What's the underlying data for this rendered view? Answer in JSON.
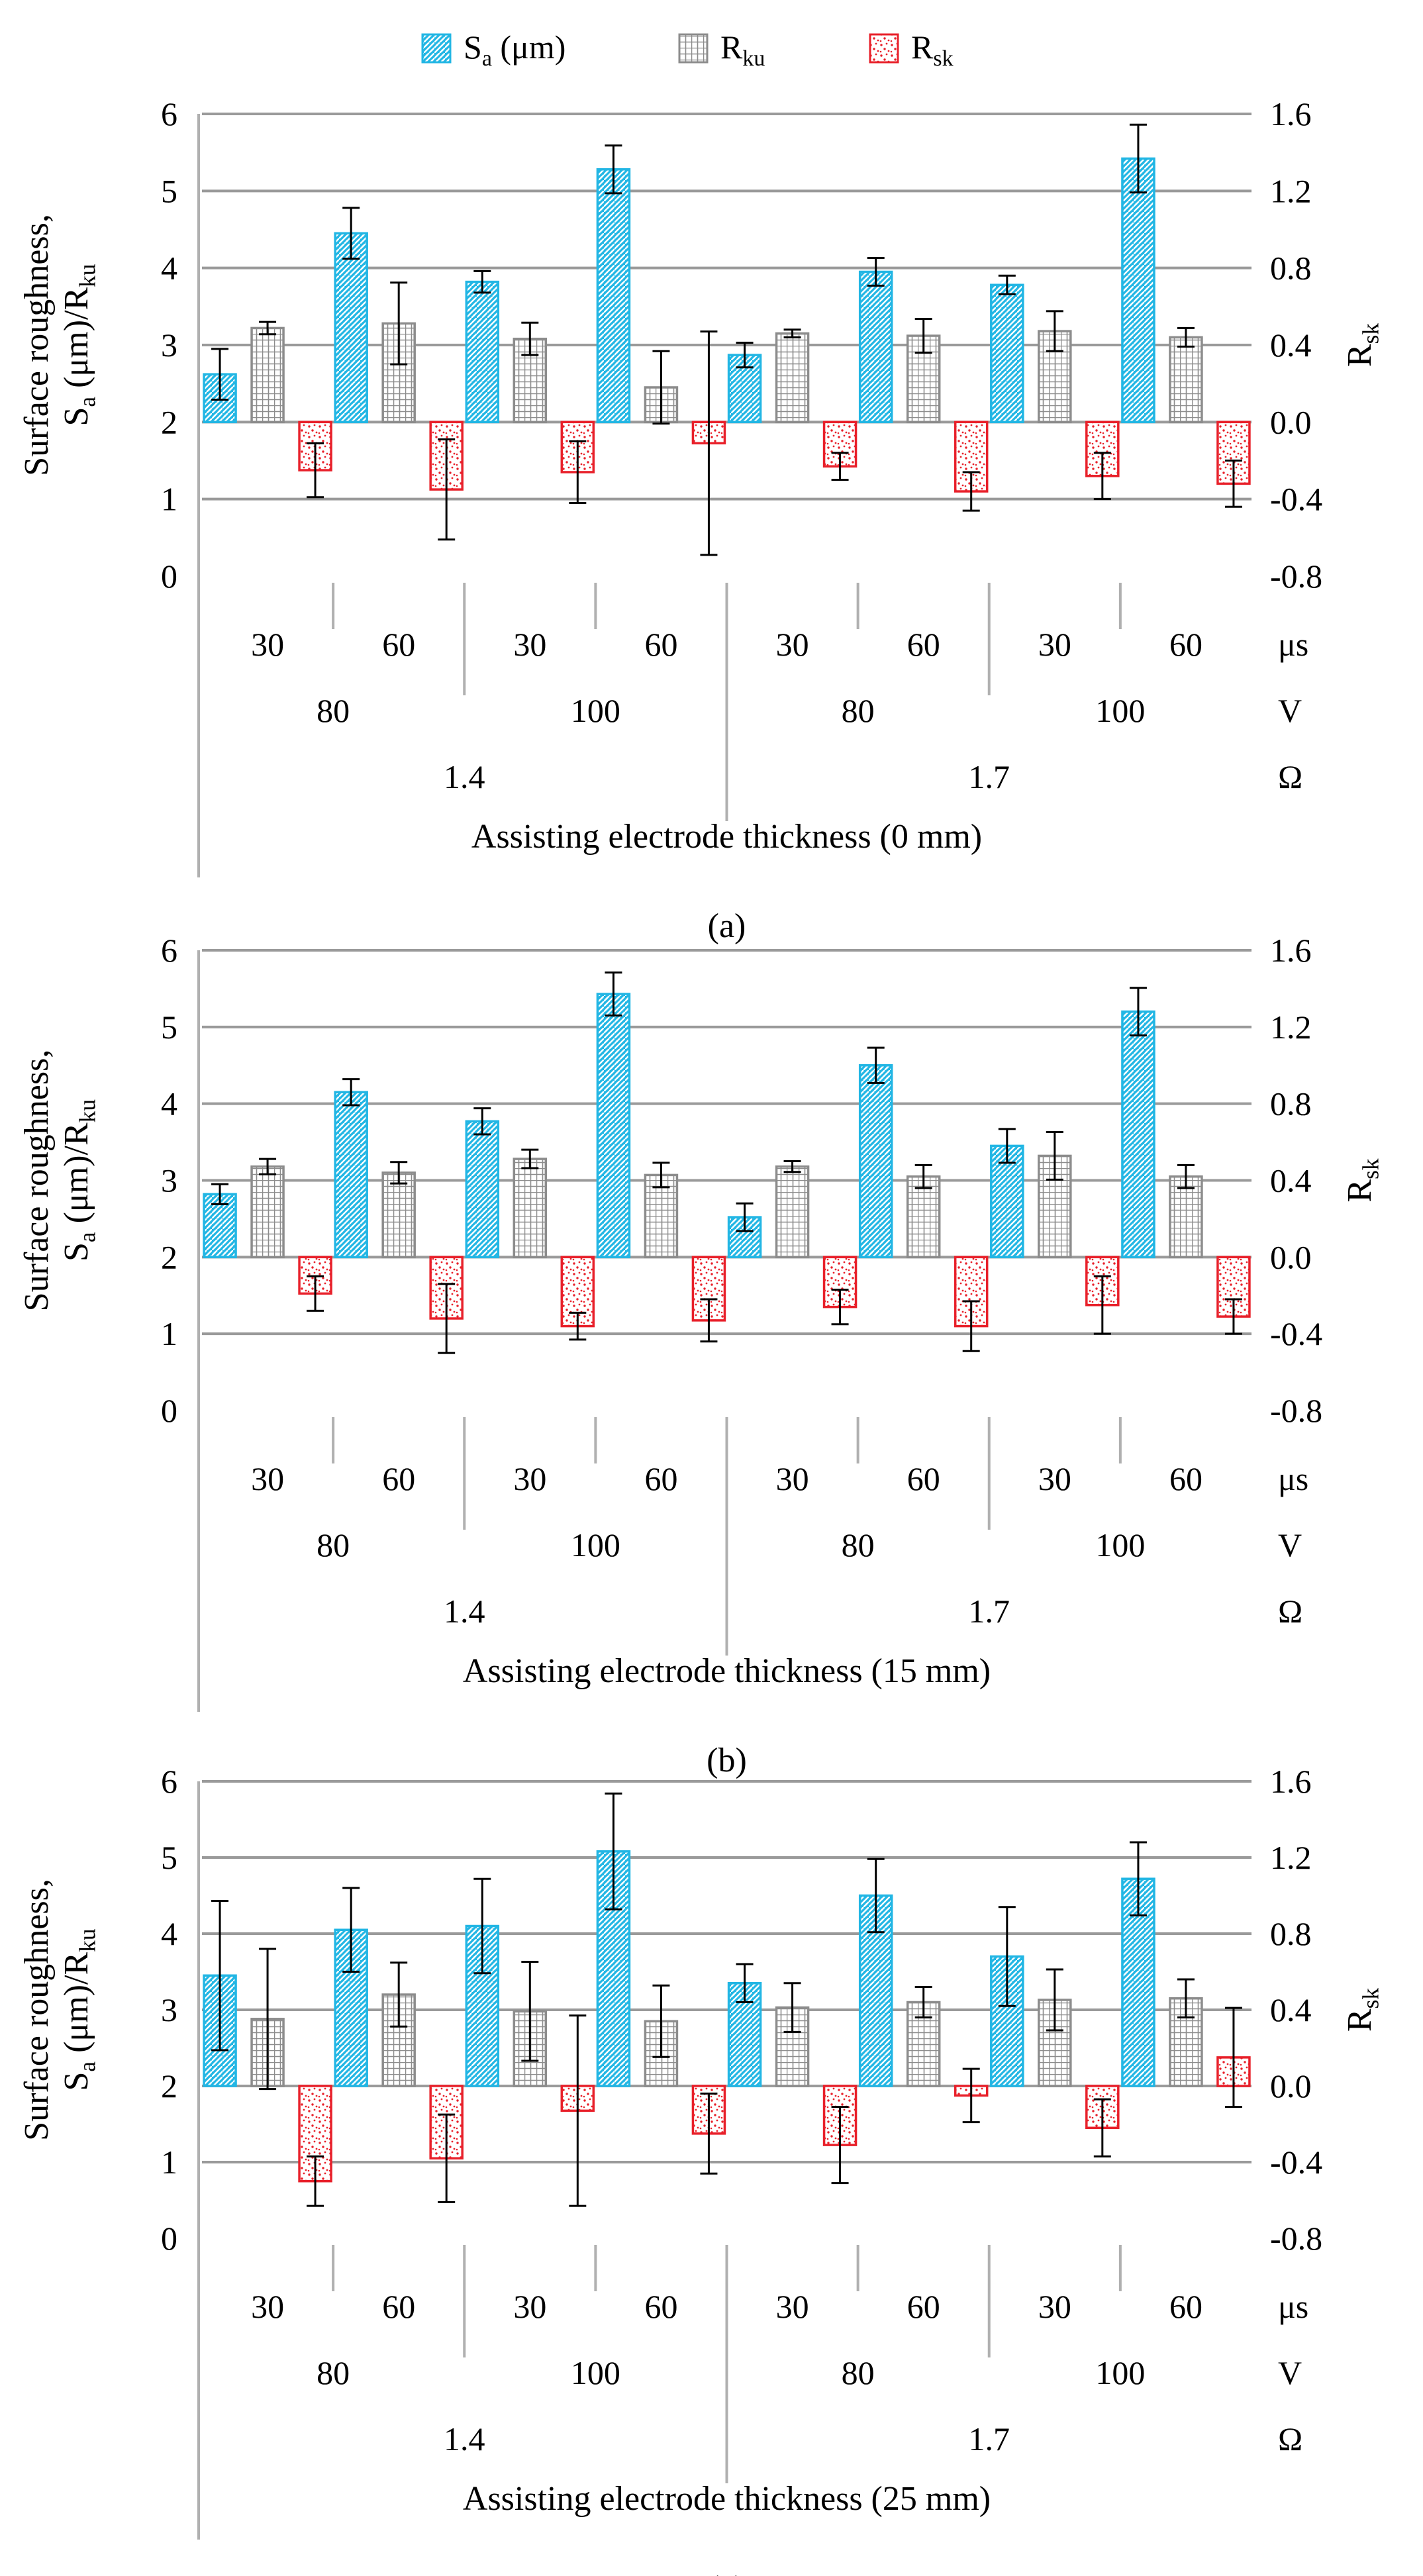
{
  "legend": {
    "position": "top-center",
    "items": [
      {
        "key": "sa",
        "main": "S",
        "sub": "a",
        "suffix": " (μm)",
        "color": "#22b6e4",
        "pattern": "sa-hatch"
      },
      {
        "key": "rku",
        "main": "R",
        "sub": "ku",
        "suffix": "",
        "color": "#8c8c8c",
        "pattern": "rku-grid"
      },
      {
        "key": "rsk",
        "main": "R",
        "sub": "sk",
        "suffix": "",
        "color": "#e8202a",
        "pattern": "rsk-dots"
      }
    ]
  },
  "colors": {
    "sa": "#22b6e4",
    "rku": "#8c8c8c",
    "rsk": "#e8202a",
    "grid": "#9a9a9a",
    "axis": "#b0b0b0"
  },
  "axes_text": {
    "ylabel_line1": "Surface roughness,",
    "ylabel_line2": {
      "main": "S",
      "sub": "a",
      "mid": " (μm)/R",
      "sub2": "ku"
    },
    "y2label": {
      "main": "R",
      "sub": "sk"
    },
    "unit_row1": "μs",
    "unit_row2": "V",
    "unit_row3": "Ω"
  },
  "chart_data": [
    {
      "type": "bar",
      "panel_label": "(a)",
      "xlabel": "Assisting electrode thickness (0 mm)",
      "grid": true,
      "ylim": [
        0,
        6
      ],
      "y_ticks": [
        "0",
        "1",
        "2",
        "3",
        "4",
        "5",
        "6"
      ],
      "y2lim": [
        -0.8,
        1.6
      ],
      "y2_ticks": [
        "-0.8",
        "-0.4",
        "0.0",
        "0.4",
        "0.8",
        "1.2",
        "1.6"
      ],
      "categories": {
        "pulse_us": [
          "30",
          "60",
          "30",
          "60",
          "30",
          "60",
          "30",
          "60"
        ],
        "voltage_V": [
          "80",
          "100",
          "80",
          "100"
        ],
        "resistance_Ohm": [
          "1.4",
          "1.7"
        ]
      },
      "series": [
        {
          "name": "Sa (μm)",
          "axis": "left",
          "values": [
            2.62,
            4.45,
            3.82,
            5.28,
            2.87,
            3.95,
            3.78,
            5.42
          ],
          "errors": [
            0.33,
            0.33,
            0.14,
            0.31,
            0.16,
            0.18,
            0.12,
            0.44
          ]
        },
        {
          "name": "Rku",
          "axis": "left",
          "values": [
            3.22,
            3.28,
            3.08,
            2.45,
            3.15,
            3.12,
            3.18,
            3.1
          ],
          "errors": [
            0.08,
            0.53,
            0.21,
            0.47,
            0.05,
            0.22,
            0.26,
            0.12
          ]
        },
        {
          "name": "Rsk",
          "axis": "right",
          "values": [
            -0.25,
            -0.35,
            -0.26,
            -0.11,
            -0.23,
            -0.36,
            -0.28,
            -0.32
          ],
          "errors": [
            0.14,
            0.26,
            0.16,
            0.58,
            0.07,
            0.1,
            0.12,
            0.12
          ]
        }
      ]
    },
    {
      "type": "bar",
      "panel_label": "(b)",
      "xlabel": "Assisting electrode thickness (15 mm)",
      "grid": true,
      "ylim": [
        0,
        6
      ],
      "y_ticks": [
        "0",
        "1",
        "2",
        "3",
        "4",
        "5",
        "6"
      ],
      "y2lim": [
        -0.8,
        1.6
      ],
      "y2_ticks": [
        "-0.8",
        "-0.4",
        "0.0",
        "0.4",
        "0.8",
        "1.2",
        "1.6"
      ],
      "categories": {
        "pulse_us": [
          "30",
          "60",
          "30",
          "60",
          "30",
          "60",
          "30",
          "60"
        ],
        "voltage_V": [
          "80",
          "100",
          "80",
          "100"
        ],
        "resistance_Ohm": [
          "1.4",
          "1.7"
        ]
      },
      "series": [
        {
          "name": "Sa (μm)",
          "axis": "left",
          "values": [
            2.82,
            4.15,
            3.77,
            5.43,
            2.52,
            4.5,
            3.45,
            5.2
          ],
          "errors": [
            0.13,
            0.17,
            0.17,
            0.28,
            0.18,
            0.23,
            0.22,
            0.31
          ]
        },
        {
          "name": "Rku",
          "axis": "left",
          "values": [
            3.18,
            3.1,
            3.28,
            3.07,
            3.18,
            3.05,
            3.32,
            3.05
          ],
          "errors": [
            0.1,
            0.14,
            0.12,
            0.16,
            0.07,
            0.15,
            0.31,
            0.15
          ]
        },
        {
          "name": "Rsk",
          "axis": "right",
          "values": [
            -0.19,
            -0.32,
            -0.36,
            -0.33,
            -0.26,
            -0.36,
            -0.25,
            -0.31
          ],
          "errors": [
            0.09,
            0.18,
            0.07,
            0.11,
            0.09,
            0.13,
            0.15,
            0.09
          ]
        }
      ]
    },
    {
      "type": "bar",
      "panel_label": "(c)",
      "xlabel": "Assisting electrode thickness (25 mm)",
      "grid": true,
      "ylim": [
        0,
        6
      ],
      "y_ticks": [
        "0",
        "1",
        "2",
        "3",
        "4",
        "5",
        "6"
      ],
      "y2lim": [
        -0.8,
        1.6
      ],
      "y2_ticks": [
        "-0.8",
        "-0.4",
        "0.0",
        "0.4",
        "0.8",
        "1.2",
        "1.6"
      ],
      "categories": {
        "pulse_us": [
          "30",
          "60",
          "30",
          "60",
          "30",
          "60",
          "30",
          "60"
        ],
        "voltage_V": [
          "80",
          "100",
          "80",
          "100"
        ],
        "resistance_Ohm": [
          "1.4",
          "1.7"
        ]
      },
      "series": [
        {
          "name": "Sa (μm)",
          "axis": "left",
          "values": [
            3.45,
            4.05,
            4.1,
            5.08,
            3.35,
            4.5,
            3.7,
            4.72
          ],
          "errors": [
            0.98,
            0.55,
            0.62,
            0.76,
            0.25,
            0.48,
            0.65,
            0.48
          ]
        },
        {
          "name": "Rku",
          "axis": "left",
          "values": [
            2.88,
            3.2,
            2.98,
            2.85,
            3.03,
            3.1,
            3.13,
            3.15
          ],
          "errors": [
            0.92,
            0.42,
            0.65,
            0.47,
            0.32,
            0.2,
            0.4,
            0.25
          ]
        },
        {
          "name": "Rsk",
          "axis": "right",
          "values": [
            -0.5,
            -0.38,
            -0.13,
            -0.25,
            -0.31,
            -0.05,
            -0.22,
            0.15
          ],
          "errors": [
            0.13,
            0.23,
            0.5,
            0.21,
            0.2,
            0.14,
            0.15,
            0.26
          ]
        }
      ]
    }
  ]
}
